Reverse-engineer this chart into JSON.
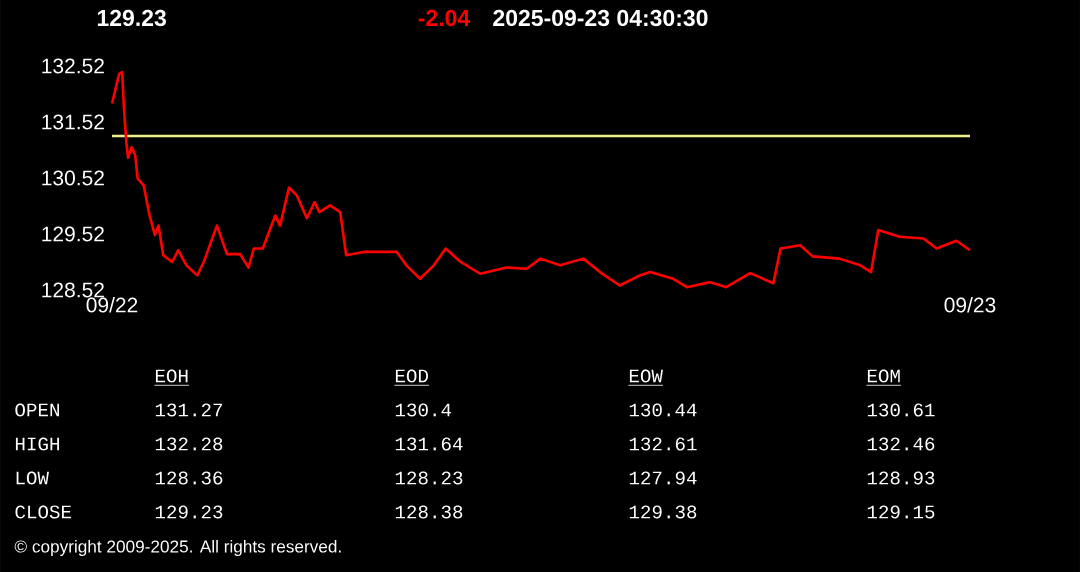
{
  "chart_data": [
    {
      "type": "line",
      "title": "129.23",
      "subtitle": "-2.04",
      "annotations": [
        "2025-09-23 04:30:30",
        "© copyright 2009-2025. All rights reserved."
      ],
      "xlim": [
        "2025-09-22",
        "2025-09-23"
      ],
      "xticks": [
        {
          "value": "2025-09-22",
          "label": "09/22"
        },
        {
          "value": "2025-09-23",
          "label": "09/23"
        }
      ],
      "ylim": [
        128.52,
        132.52
      ],
      "yticks": [
        128.52,
        129.52,
        130.52,
        131.52,
        132.52
      ],
      "ref_lines": [
        {
          "axis": "y",
          "value": 131.27,
          "color": "#f0f090"
        }
      ],
      "series": [
        {
          "color": "#ff0000",
          "x": [
            "2025-09-22T00:00",
            "2025-09-22T00:12",
            "2025-09-22T00:17",
            "2025-09-22T00:20",
            "2025-09-22T00:24",
            "2025-09-22T00:27",
            "2025-09-22T00:33",
            "2025-09-22T00:39",
            "2025-09-22T00:43",
            "2025-09-22T00:53",
            "2025-09-22T01:03",
            "2025-09-22T01:12",
            "2025-09-22T01:18",
            "2025-09-22T01:26",
            "2025-09-22T01:41",
            "2025-09-22T01:51",
            "2025-09-22T02:05",
            "2025-09-22T02:23",
            "2025-09-22T02:34",
            "2025-09-22T02:56",
            "2025-09-22T03:13",
            "2025-09-22T03:35",
            "2025-09-22T03:49",
            "2025-09-22T03:58",
            "2025-09-22T04:13",
            "2025-09-22T04:34",
            "2025-09-22T04:42",
            "2025-09-22T04:57",
            "2025-09-22T05:10",
            "2025-09-22T05:27",
            "2025-09-22T05:40",
            "2025-09-22T05:48",
            "2025-09-22T06:06",
            "2025-09-22T06:23",
            "2025-09-22T06:33",
            "2025-09-22T07:02",
            "2025-09-22T07:24",
            "2025-09-22T07:58",
            "2025-09-22T08:14",
            "2025-09-22T08:37",
            "2025-09-22T09:00",
            "2025-09-22T09:20",
            "2025-09-22T09:45",
            "2025-09-22T10:18",
            "2025-09-22T11:02",
            "2025-09-22T11:36",
            "2025-09-22T11:59",
            "2025-09-22T12:32",
            "2025-09-22T13:11",
            "2025-09-22T13:39",
            "2025-09-22T14:12",
            "2025-09-22T14:46",
            "2025-09-22T15:03",
            "2025-09-22T15:42",
            "2025-09-22T16:05",
            "2025-09-22T16:44",
            "2025-09-22T17:11",
            "2025-09-22T17:51",
            "2025-09-22T18:30",
            "2025-09-22T18:42",
            "2025-09-22T19:15",
            "2025-09-22T19:36",
            "2025-09-22T20:21",
            "2025-09-22T20:56",
            "2025-09-22T21:14",
            "2025-09-22T21:26",
            "2025-09-22T22:02",
            "2025-09-22T22:42",
            "2025-09-22T23:04",
            "2025-09-22T23:37",
            "2025-09-23T00:00"
          ],
          "values": [
            131.85,
            132.38,
            132.41,
            131.76,
            131.16,
            130.88,
            131.07,
            130.92,
            130.51,
            130.39,
            129.85,
            129.5,
            129.67,
            129.14,
            129.02,
            129.23,
            128.96,
            128.78,
            129.02,
            129.67,
            129.16,
            129.16,
            128.92,
            129.26,
            129.26,
            129.85,
            129.67,
            130.35,
            130.21,
            129.8,
            130.09,
            129.91,
            130.03,
            129.91,
            129.14,
            129.2,
            129.2,
            129.2,
            128.96,
            128.72,
            128.96,
            129.26,
            129.02,
            128.81,
            128.92,
            128.9,
            129.08,
            128.96,
            129.08,
            128.84,
            128.6,
            128.78,
            128.84,
            128.72,
            128.57,
            128.66,
            128.57,
            128.82,
            128.64,
            129.26,
            129.32,
            129.12,
            129.08,
            128.96,
            128.84,
            129.59,
            129.47,
            129.44,
            129.26,
            129.4,
            129.23
          ]
        }
      ]
    },
    {
      "type": "other",
      "categories": [
        "EOH",
        "EOD",
        "EOW",
        "EOM"
      ],
      "y_categories": [
        "OPEN",
        "HIGH",
        "LOW",
        "CLOSE"
      ],
      "cell_labels": [
        [
          "131.27",
          "130.4",
          "130.44",
          "130.61"
        ],
        [
          "132.28",
          "131.64",
          "132.61",
          "132.46"
        ],
        [
          "128.36",
          "128.23",
          "127.94",
          "128.93"
        ],
        [
          "129.23",
          "128.38",
          "129.38",
          "129.15"
        ]
      ]
    }
  ]
}
